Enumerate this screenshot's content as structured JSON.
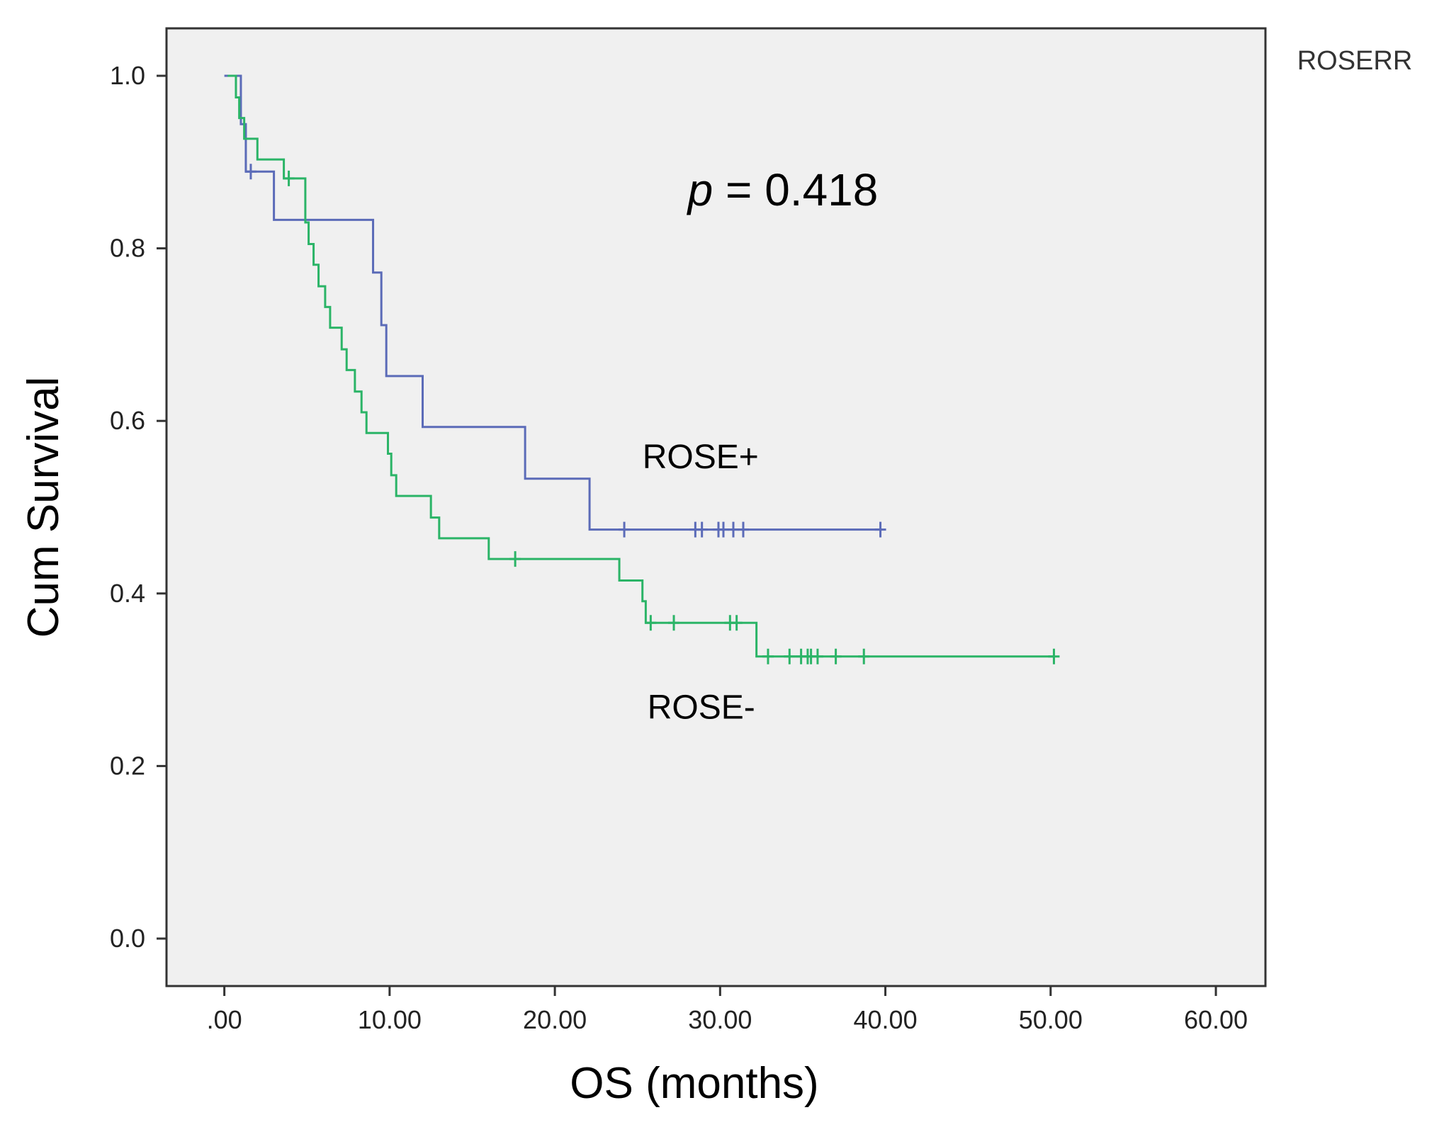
{
  "chart_data": {
    "type": "line",
    "title": "",
    "xlabel": "OS (months)",
    "ylabel": "Cum Survival",
    "xlim": [
      -3.5,
      63
    ],
    "ylim": [
      -0.055,
      1.055
    ],
    "xticks": [
      0,
      10,
      20,
      30,
      40,
      50,
      60
    ],
    "xtick_labels": [
      ".00",
      "10.00",
      "20.00",
      "30.00",
      "40.00",
      "50.00",
      "60.00"
    ],
    "yticks": [
      0,
      0.2,
      0.4,
      0.6,
      0.8,
      1.0
    ],
    "ytick_labels": [
      "0.0",
      "0.2",
      "0.4",
      "0.6",
      "0.8",
      "1.0"
    ],
    "legend_title": "ROSERR",
    "pvalue": {
      "italic": "p",
      "rest": " = 0.418"
    },
    "annotations": [
      {
        "id": "rose-plus",
        "text": "ROSE+",
        "x": 25.3,
        "y": 0.545
      },
      {
        "id": "rose-minus",
        "text": "ROSE-",
        "x": 25.6,
        "y": 0.255
      }
    ],
    "series": [
      {
        "name": "ROSE+",
        "color": "#5b6bb8",
        "steps": [
          [
            0,
            1.0
          ],
          [
            1.0,
            0.944
          ],
          [
            1.3,
            0.889
          ],
          [
            3.0,
            0.833
          ],
          [
            9.0,
            0.772
          ],
          [
            9.5,
            0.711
          ],
          [
            9.8,
            0.652
          ],
          [
            12.0,
            0.593
          ],
          [
            18.2,
            0.533
          ],
          [
            22.1,
            0.474
          ],
          [
            39.8,
            0.474
          ]
        ],
        "censored": [
          [
            1.6,
            0.889
          ],
          [
            24.2,
            0.474
          ],
          [
            28.5,
            0.474
          ],
          [
            28.9,
            0.474
          ],
          [
            29.9,
            0.474
          ],
          [
            30.2,
            0.474
          ],
          [
            30.8,
            0.474
          ],
          [
            31.4,
            0.474
          ],
          [
            39.7,
            0.474
          ]
        ]
      },
      {
        "name": "ROSE-",
        "color": "#2bb467",
        "steps": [
          [
            0.2,
            1.0
          ],
          [
            0.7,
            0.975
          ],
          [
            0.9,
            0.951
          ],
          [
            1.2,
            0.927
          ],
          [
            2.0,
            0.903
          ],
          [
            3.6,
            0.881
          ],
          [
            4.9,
            0.83
          ],
          [
            5.1,
            0.805
          ],
          [
            5.4,
            0.781
          ],
          [
            5.7,
            0.756
          ],
          [
            6.1,
            0.732
          ],
          [
            6.4,
            0.708
          ],
          [
            7.1,
            0.683
          ],
          [
            7.4,
            0.659
          ],
          [
            7.9,
            0.634
          ],
          [
            8.3,
            0.61
          ],
          [
            8.6,
            0.586
          ],
          [
            9.9,
            0.562
          ],
          [
            10.1,
            0.537
          ],
          [
            10.4,
            0.513
          ],
          [
            12.5,
            0.488
          ],
          [
            13.0,
            0.464
          ],
          [
            16.0,
            0.44
          ],
          [
            23.9,
            0.415
          ],
          [
            25.3,
            0.391
          ],
          [
            25.5,
            0.366
          ],
          [
            32.2,
            0.327
          ],
          [
            50.2,
            0.327
          ]
        ],
        "censored": [
          [
            3.9,
            0.881
          ],
          [
            17.6,
            0.44
          ],
          [
            25.8,
            0.366
          ],
          [
            27.2,
            0.366
          ],
          [
            30.6,
            0.366
          ],
          [
            31.0,
            0.366
          ],
          [
            32.9,
            0.327
          ],
          [
            34.2,
            0.327
          ],
          [
            34.9,
            0.327
          ],
          [
            35.3,
            0.327
          ],
          [
            35.5,
            0.327
          ],
          [
            35.9,
            0.327
          ],
          [
            37.0,
            0.327
          ],
          [
            38.7,
            0.327
          ],
          [
            50.2,
            0.327
          ]
        ]
      }
    ]
  }
}
